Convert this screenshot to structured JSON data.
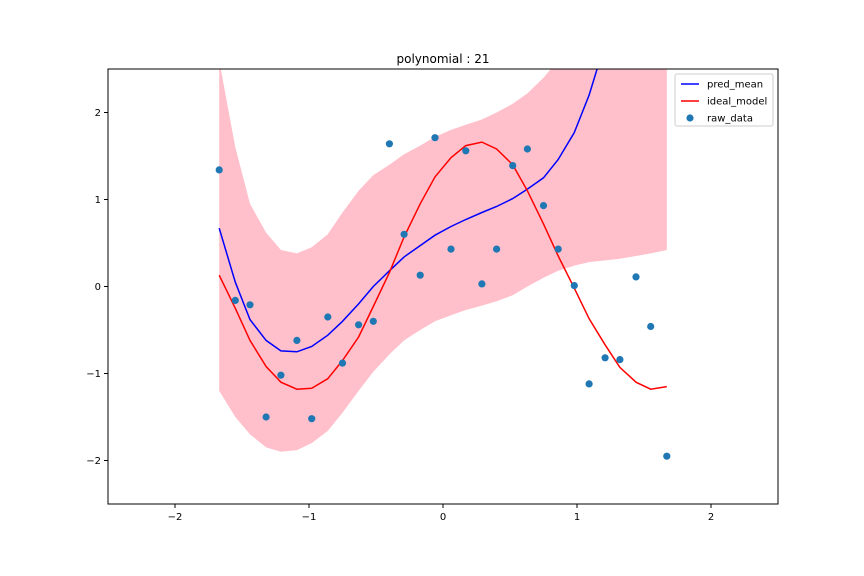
{
  "chart_data": {
    "type": "line",
    "title": "polynomial : 21",
    "xlim": [
      -2.5,
      2.5
    ],
    "ylim": [
      -2.5,
      2.5
    ],
    "xticks": [
      -2,
      -1,
      0,
      1,
      2
    ],
    "yticks": [
      -2,
      -1,
      0,
      1,
      2
    ],
    "tick_labels_x": [
      "−2",
      "−1",
      "0",
      "1",
      "2"
    ],
    "tick_labels_y": [
      "−2",
      "−1",
      "0",
      "1",
      "2"
    ],
    "grid": false,
    "legend_position": "top-right",
    "legend": [
      "pred_mean",
      "ideal_model",
      "raw_data"
    ],
    "series": [
      {
        "name": "pred_mean",
        "kind": "line",
        "color": "#0000ff",
        "x": [
          -1.67,
          -1.55,
          -1.44,
          -1.32,
          -1.21,
          -1.09,
          -0.98,
          -0.86,
          -0.75,
          -0.63,
          -0.52,
          -0.4,
          -0.29,
          -0.17,
          -0.06,
          0.06,
          0.17,
          0.29,
          0.4,
          0.52,
          0.63,
          0.75,
          0.86,
          0.98,
          1.09,
          1.21
        ],
        "y": [
          0.67,
          0.05,
          -0.38,
          -0.62,
          -0.74,
          -0.75,
          -0.69,
          -0.56,
          -0.4,
          -0.2,
          0.0,
          0.18,
          0.34,
          0.47,
          0.59,
          0.69,
          0.77,
          0.85,
          0.92,
          1.01,
          1.12,
          1.25,
          1.46,
          1.77,
          2.2,
          2.8
        ]
      },
      {
        "name": "ideal_model",
        "kind": "line",
        "color": "#ff0000",
        "x": [
          -1.67,
          -1.55,
          -1.44,
          -1.32,
          -1.21,
          -1.09,
          -0.98,
          -0.86,
          -0.75,
          -0.63,
          -0.52,
          -0.4,
          -0.29,
          -0.17,
          -0.06,
          0.06,
          0.17,
          0.29,
          0.4,
          0.52,
          0.63,
          0.75,
          0.86,
          0.98,
          1.09,
          1.21,
          1.32,
          1.44,
          1.55,
          1.67
        ],
        "y": [
          0.13,
          -0.25,
          -0.62,
          -0.92,
          -1.1,
          -1.18,
          -1.17,
          -1.06,
          -0.85,
          -0.58,
          -0.23,
          0.16,
          0.57,
          0.95,
          1.26,
          1.48,
          1.62,
          1.66,
          1.58,
          1.4,
          1.1,
          0.72,
          0.35,
          -0.02,
          -0.37,
          -0.67,
          -0.93,
          -1.1,
          -1.18,
          -1.15
        ]
      },
      {
        "name": "raw_data",
        "kind": "scatter",
        "color": "#1f77b4",
        "x": [
          -1.67,
          -1.55,
          -1.44,
          -1.32,
          -1.21,
          -1.09,
          -0.98,
          -0.86,
          -0.75,
          -0.63,
          -0.52,
          -0.4,
          -0.29,
          -0.17,
          -0.06,
          0.06,
          0.17,
          0.29,
          0.4,
          0.52,
          0.63,
          0.75,
          0.86,
          0.98,
          1.09,
          1.21,
          1.32,
          1.44,
          1.55,
          1.67
        ],
        "y": [
          1.34,
          -0.16,
          -0.21,
          -1.5,
          -1.02,
          -0.62,
          -1.52,
          -0.35,
          -0.88,
          -0.44,
          -0.4,
          1.64,
          0.6,
          0.13,
          1.71,
          0.43,
          1.56,
          0.03,
          0.43,
          1.39,
          1.58,
          0.93,
          0.43,
          0.01,
          -1.12,
          -0.82,
          -0.84,
          0.11,
          -0.46,
          -1.95
        ]
      }
    ],
    "band": {
      "color": "#ffc0cb",
      "x": [
        -1.67,
        -1.55,
        -1.44,
        -1.32,
        -1.21,
        -1.09,
        -0.98,
        -0.86,
        -0.75,
        -0.63,
        -0.52,
        -0.4,
        -0.29,
        -0.17,
        -0.06,
        0.06,
        0.17,
        0.29,
        0.4,
        0.52,
        0.63,
        0.75,
        0.86,
        0.98,
        1.09,
        1.21,
        1.32,
        1.44,
        1.55,
        1.67
      ],
      "upper": [
        2.6,
        1.6,
        0.95,
        0.62,
        0.42,
        0.38,
        0.45,
        0.6,
        0.85,
        1.1,
        1.28,
        1.4,
        1.52,
        1.62,
        1.72,
        1.8,
        1.86,
        1.92,
        2.0,
        2.1,
        2.22,
        2.4,
        2.6,
        2.8,
        3.0,
        3.0,
        3.0,
        3.0,
        3.0,
        3.0
      ],
      "lower": [
        -1.2,
        -1.5,
        -1.7,
        -1.85,
        -1.9,
        -1.88,
        -1.8,
        -1.66,
        -1.45,
        -1.2,
        -0.98,
        -0.78,
        -0.62,
        -0.5,
        -0.4,
        -0.33,
        -0.27,
        -0.22,
        -0.17,
        -0.1,
        0.0,
        0.1,
        0.18,
        0.24,
        0.28,
        0.3,
        0.32,
        0.35,
        0.38,
        0.42
      ]
    }
  }
}
